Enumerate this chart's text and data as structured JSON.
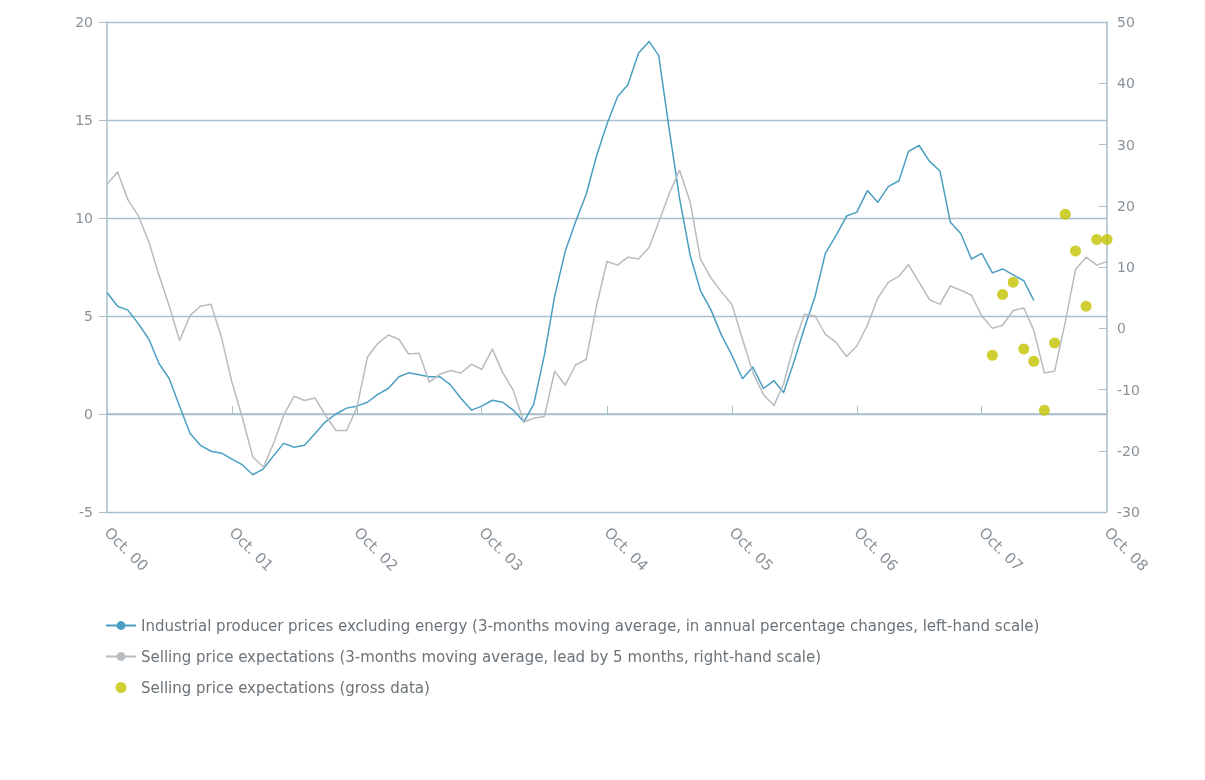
{
  "chart_data": {
    "type": "line",
    "x": [
      "2000-10",
      "2000-11",
      "2000-12",
      "2001-01",
      "2001-02",
      "2001-03",
      "2001-04",
      "2001-05",
      "2001-06",
      "2001-07",
      "2001-08",
      "2001-09",
      "2001-10",
      "2001-11",
      "2001-12",
      "2002-01",
      "2002-02",
      "2002-03",
      "2002-04",
      "2002-05",
      "2002-06",
      "2002-07",
      "2002-08",
      "2002-09",
      "2002-10",
      "2002-11",
      "2002-12",
      "2003-01",
      "2003-02",
      "2003-03",
      "2003-04",
      "2003-05",
      "2003-06",
      "2003-07",
      "2003-08",
      "2003-09",
      "2003-10",
      "2003-11",
      "2003-12",
      "2004-01",
      "2004-02",
      "2004-03",
      "2004-04",
      "2004-05",
      "2004-06",
      "2004-07",
      "2004-08",
      "2004-09",
      "2004-10",
      "2004-11",
      "2004-12",
      "2005-01",
      "2005-02",
      "2005-03",
      "2005-04",
      "2005-05",
      "2005-06",
      "2005-07",
      "2005-08",
      "2005-09",
      "2005-10",
      "2005-11",
      "2005-12",
      "2006-01",
      "2006-02",
      "2006-03",
      "2006-04",
      "2006-05",
      "2006-06",
      "2006-07",
      "2006-08",
      "2006-09",
      "2006-10",
      "2006-11",
      "2006-12",
      "2007-01",
      "2007-02",
      "2007-03",
      "2007-04",
      "2007-05",
      "2007-06",
      "2007-07",
      "2007-08",
      "2007-09",
      "2007-10",
      "2007-11",
      "2007-12",
      "2008-01",
      "2008-02",
      "2008-03",
      "2008-04",
      "2008-05",
      "2008-06",
      "2008-07",
      "2008-08",
      "2008-09",
      "2008-10"
    ],
    "series": [
      {
        "name": "Industrial producer prices excluding energy (3-months moving average, in annual percentage changes, left-hand scale)",
        "color": "#4a9ec1",
        "marker": "none",
        "line_style": "solid",
        "values": [
          6.2,
          5.5,
          5.3,
          4.6,
          3.8,
          2.6,
          1.8,
          0.4,
          -1.0,
          -1.6,
          -1.9,
          -2.0,
          -2.3,
          -2.6,
          -3.1,
          -2.8,
          -2.1,
          -1.5,
          -1.7,
          -1.6,
          -1.0,
          -0.4,
          0.0,
          0.3,
          0.4,
          0.6,
          1.0,
          1.3,
          1.9,
          2.1,
          2.0,
          1.9,
          1.9,
          1.5,
          0.8,
          0.2,
          0.4,
          0.7,
          0.6,
          0.2,
          -0.4,
          0.5,
          3.0,
          6.0,
          8.3,
          9.8,
          11.2,
          13.2,
          14.8,
          16.2,
          16.8,
          18.4,
          19.0,
          18.3,
          14.5,
          11.0,
          8.1,
          6.3,
          5.3,
          4.0,
          3.0,
          1.8,
          2.4,
          1.3,
          1.7,
          1.1,
          2.7,
          4.4,
          6.0,
          8.2,
          9.1,
          10.1,
          10.3,
          11.4,
          10.8,
          11.6,
          11.9,
          13.4,
          13.7,
          12.9,
          12.4,
          9.8,
          9.2,
          7.9,
          8.2,
          7.2,
          7.4,
          7.1,
          6.8,
          5.8,
          null,
          null,
          null,
          null,
          null,
          null,
          null
        ]
      },
      {
        "name": "Selling price expectations (3-months moving average, lead by 5 months, right-hand scale)",
        "color": "#b7bcc0",
        "axis": "y2",
        "marker": "none",
        "line_style": "solid",
        "values": [
          23.5,
          25.5,
          21,
          18.3,
          14,
          8.8,
          3.6,
          -2,
          2.1,
          3.6,
          3.9,
          -1.6,
          -8.8,
          -14.7,
          -21,
          -22.7,
          -18.6,
          -14.2,
          -11.1,
          -11.8,
          -11.4,
          -14.2,
          -16.7,
          -16.7,
          -13,
          -4.7,
          -2.5,
          -1.1,
          -1.8,
          -4.2,
          -4.1,
          -8.8,
          -7.5,
          -6.9,
          -7.3,
          -5.9,
          -6.7,
          -3.4,
          -7.2,
          -10.1,
          -15.3,
          -14.7,
          -14.4,
          -7,
          -9.3,
          -6,
          -5.1,
          3.8,
          10.9,
          10.3,
          11.6,
          11.3,
          13.2,
          17.3,
          22,
          25.8,
          20.6,
          11.3,
          8.2,
          5.9,
          3.9,
          -1.8,
          -7.2,
          -10.8,
          -12.6,
          -9.1,
          -2.6,
          2.3,
          2,
          -1,
          -2.3,
          -4.6,
          -2.9,
          0.5,
          4.9,
          7.5,
          8.5,
          10.4,
          7.5,
          4.7,
          3.9,
          6.9,
          6.2,
          5.4,
          2,
          0,
          0.5,
          2.9,
          3.3,
          -0.3,
          -7.3,
          -7,
          1,
          9.6,
          11.6,
          10.3,
          10.9
        ]
      },
      {
        "name": "Selling price expectations (gross data)",
        "type": "scatter",
        "color": "#c3c300",
        "axis": "y2",
        "marker": "circle",
        "x": [
          "2007-11",
          "2007-12",
          "2008-01",
          "2008-02",
          "2008-03",
          "2008-04",
          "2008-05",
          "2008-06",
          "2008-07",
          "2008-08",
          "2008-09",
          "2008-10"
        ],
        "values": [
          -4.4,
          5.5,
          7.5,
          -3.4,
          -5.4,
          -13.4,
          -2.4,
          18.6,
          12.6,
          3.6,
          14.5,
          14.5
        ]
      }
    ],
    "xlim": [
      "2000-10",
      "2008-10"
    ],
    "xticks": [
      {
        "value": "2000-10",
        "label": "Oct. 00"
      },
      {
        "value": "2001-10",
        "label": "Oct. 01"
      },
      {
        "value": "2002-10",
        "label": "Oct. 02"
      },
      {
        "value": "2003-10",
        "label": "Oct. 03"
      },
      {
        "value": "2004-10",
        "label": "Oct. 04"
      },
      {
        "value": "2005-10",
        "label": "Oct. 05"
      },
      {
        "value": "2006-10",
        "label": "Oct. 06"
      },
      {
        "value": "2007-10",
        "label": "Oct. 07"
      },
      {
        "value": "2008-10",
        "label": "Oct. 08"
      }
    ],
    "ylim": [
      -5,
      20
    ],
    "yticks": [
      -5,
      0,
      5,
      10,
      15,
      20
    ],
    "y2lim": [
      -30,
      50
    ],
    "y2ticks": [
      -30,
      -20,
      -10,
      0,
      10,
      20,
      30,
      40,
      50
    ],
    "grid": "y",
    "legend": "bottom"
  }
}
